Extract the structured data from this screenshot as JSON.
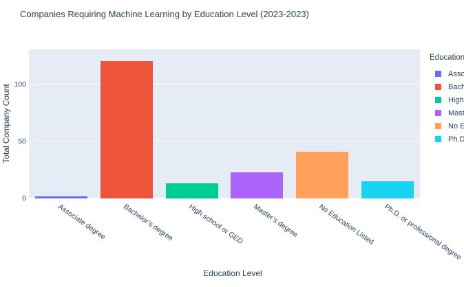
{
  "chart_data": {
    "type": "bar",
    "title": "Companies Requiring Machine Learning by Education Level (2023-2023)",
    "xlabel": "Education Level",
    "ylabel": "Total Company Count",
    "categories": [
      "Associate degree",
      "Bachelor’s degree",
      "High school or GED",
      "Master’s degree",
      "No Education Listed",
      "Ph.D. or professional degree"
    ],
    "values": [
      2,
      121,
      13,
      23,
      41,
      15
    ],
    "bar_colors": [
      "#636EFA",
      "#EF553B",
      "#00CC96",
      "#AB63FA",
      "#FFA15A",
      "#19D3F3"
    ],
    "ylim": [
      0,
      131
    ],
    "yticks": [
      0,
      50,
      100
    ],
    "grid": true,
    "legend_title": "Education Level",
    "legend_position": "right"
  },
  "colors": {
    "paper_background": "#ffffff",
    "plot_background": "#E5ECF6",
    "gridline": "#ffffff",
    "text": "#2a3f5f"
  }
}
